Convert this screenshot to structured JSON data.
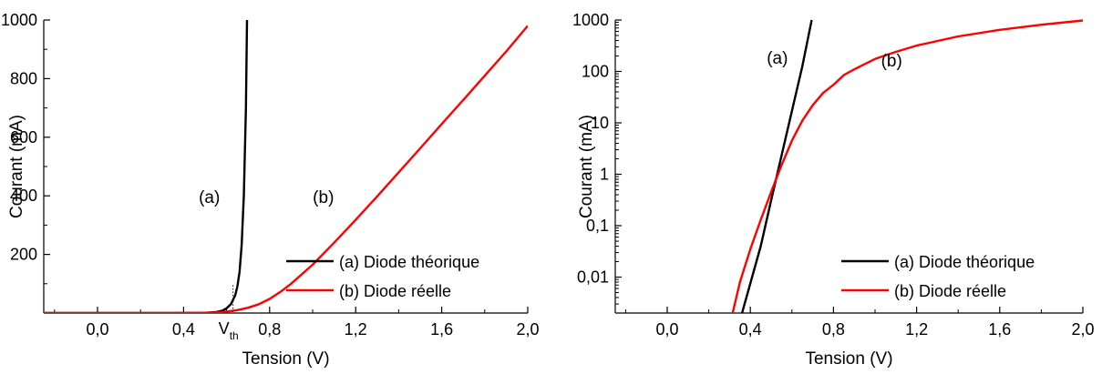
{
  "chart_data": [
    {
      "type": "line",
      "xlabel": "Tension (V)",
      "ylabel": "Courant (mA)",
      "xlim": [
        -0.25,
        2.0
      ],
      "ylim": [
        0,
        1000
      ],
      "yscale": "linear",
      "x_ticks": [
        "0,0",
        "0,4",
        "0,8",
        "1,2",
        "1,6",
        "2,0"
      ],
      "x_tick_values": [
        0.0,
        0.4,
        0.8,
        1.2,
        1.6,
        2.0
      ],
      "y_ticks": [
        "200",
        "400",
        "600",
        "800",
        "1000"
      ],
      "y_tick_values": [
        200,
        400,
        600,
        800,
        1000
      ],
      "grid": false,
      "legend_position": "bottom-right",
      "series": [
        {
          "name": "(a) Diode théorique",
          "color": "#000000",
          "x": [
            -0.25,
            0.3,
            0.45,
            0.5,
            0.55,
            0.58,
            0.6,
            0.62,
            0.64,
            0.65,
            0.66,
            0.67,
            0.68,
            0.69,
            0.695
          ],
          "y": [
            0,
            0,
            0.1,
            0.5,
            3,
            8,
            16,
            30,
            60,
            90,
            140,
            230,
            400,
            700,
            1000
          ]
        },
        {
          "name": "(b) Diode réelle",
          "color": "#ff0000",
          "x": [
            -0.25,
            0.3,
            0.45,
            0.55,
            0.6,
            0.65,
            0.7,
            0.75,
            0.8,
            0.85,
            0.9,
            1.0,
            1.1,
            1.2,
            1.3,
            1.4,
            1.5,
            1.6,
            1.7,
            1.8,
            1.9,
            2.0
          ],
          "y": [
            0,
            0,
            0.5,
            2,
            5,
            10,
            18,
            30,
            48,
            72,
            100,
            165,
            240,
            318,
            398,
            480,
            562,
            645,
            727,
            810,
            893,
            980
          ]
        }
      ],
      "annotations": [
        {
          "text": "(a)",
          "x": 0.52,
          "y": 395
        },
        {
          "text": "(b)",
          "x": 1.05,
          "y": 395
        },
        {
          "text": "V",
          "subscript": "th",
          "x": 0.63,
          "y": 0
        }
      ]
    },
    {
      "type": "line",
      "xlabel": "Tension (V)",
      "ylabel": "Courant (mA)",
      "xlim": [
        -0.25,
        2.0
      ],
      "ylim": [
        0.002,
        1000
      ],
      "yscale": "log",
      "x_ticks": [
        "0,0",
        "0,4",
        "0,8",
        "1,2",
        "1,6",
        "2,0"
      ],
      "x_tick_values": [
        0.0,
        0.4,
        0.8,
        1.2,
        1.6,
        2.0
      ],
      "y_ticks": [
        "0,01",
        "0,1",
        "1",
        "10",
        "100",
        "1000"
      ],
      "y_tick_values": [
        0.01,
        0.1,
        1,
        10,
        100,
        1000
      ],
      "grid": false,
      "legend_position": "bottom-right",
      "series": [
        {
          "name": "(a) Diode théorique",
          "color": "#000000",
          "x": [
            0.36,
            0.45,
            0.5,
            0.55,
            0.6,
            0.65,
            0.695
          ],
          "y": [
            0.002,
            0.04,
            0.31,
            2.3,
            17,
            125,
            1000
          ]
        },
        {
          "name": "(b) Diode réelle",
          "color": "#ff0000",
          "x": [
            0.315,
            0.35,
            0.4,
            0.45,
            0.5,
            0.55,
            0.6,
            0.65,
            0.7,
            0.75,
            0.8,
            0.85,
            0.9,
            1.0,
            1.1,
            1.2,
            1.4,
            1.6,
            1.8,
            2.0
          ],
          "y": [
            0.002,
            0.008,
            0.035,
            0.13,
            0.45,
            1.5,
            4.5,
            11,
            22,
            38,
            55,
            85,
            110,
            175,
            240,
            318,
            480,
            645,
            810,
            980
          ]
        }
      ],
      "annotations": [
        {
          "text": "(a)",
          "x": 0.53,
          "y": 180
        },
        {
          "text": "(b)",
          "x": 1.08,
          "y": 160
        }
      ]
    }
  ]
}
